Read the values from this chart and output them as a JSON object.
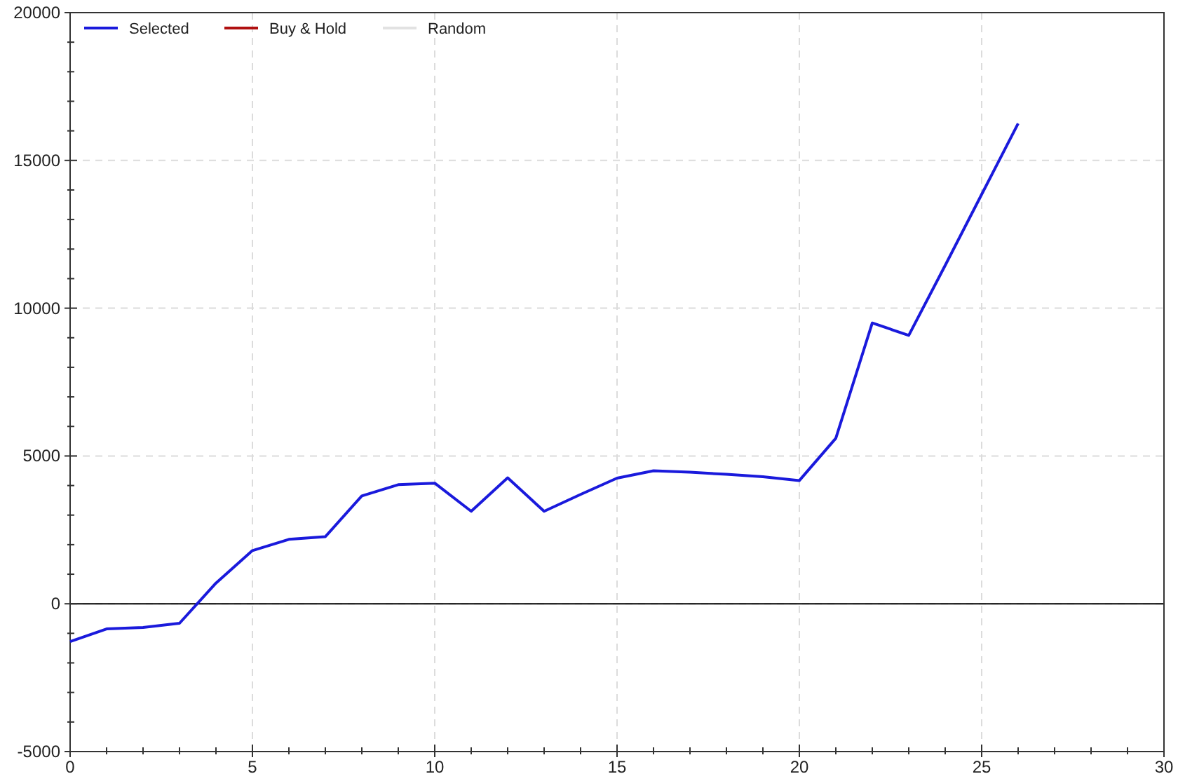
{
  "chart_data": {
    "type": "line",
    "x": [
      0,
      1,
      2,
      3,
      4,
      5,
      6,
      7,
      8,
      9,
      10,
      11,
      12,
      13,
      14,
      15,
      16,
      17,
      18,
      19,
      20,
      21,
      22,
      23,
      24,
      25,
      26
    ],
    "series": [
      {
        "name": "Selected",
        "color": "#1a1adc",
        "values": [
          -1280,
          -850,
          -800,
          -660,
          700,
          1800,
          2180,
          2270,
          3650,
          4030,
          4080,
          3130,
          4260,
          3130,
          3700,
          4250,
          4500,
          4450,
          4380,
          4300,
          4170,
          5600,
          9500,
          9080,
          11450,
          13850,
          16250
        ]
      },
      {
        "name": "Buy & Hold",
        "color": "#b01010",
        "values": [
          null,
          null,
          null,
          null,
          null,
          null,
          null,
          null,
          null,
          null,
          null,
          null,
          null,
          null,
          null,
          null,
          null,
          null,
          null,
          null,
          null,
          null,
          null,
          null,
          null,
          null,
          null
        ]
      },
      {
        "name": "Random",
        "color": "#e2e2e2",
        "values": [
          null,
          null,
          null,
          null,
          null,
          null,
          null,
          null,
          null,
          null,
          null,
          null,
          null,
          null,
          null,
          null,
          null,
          null,
          null,
          null,
          null,
          null,
          null,
          null,
          null,
          null,
          null
        ]
      }
    ],
    "xlim": [
      0,
      30
    ],
    "xticks": [
      0,
      {
        "value": 1,
        "label": null
      },
      {
        "value": 2,
        "label": null
      },
      {
        "value": 3,
        "label": null
      },
      {
        "value": 4,
        "label": null
      },
      5,
      {
        "value": 6,
        "label": null
      },
      {
        "value": 7,
        "label": null
      },
      {
        "value": 8,
        "label": null
      },
      {
        "value": 9,
        "label": null
      },
      10,
      {
        "value": 11,
        "label": null
      },
      {
        "value": 12,
        "label": null
      },
      {
        "value": 13,
        "label": null
      },
      {
        "value": 14,
        "label": null
      },
      15,
      {
        "value": 16,
        "label": null
      },
      {
        "value": 17,
        "label": null
      },
      {
        "value": 18,
        "label": null
      },
      {
        "value": 19,
        "label": null
      },
      20,
      {
        "value": 21,
        "label": null
      },
      {
        "value": 22,
        "label": null
      },
      {
        "value": 23,
        "label": null
      },
      {
        "value": 24,
        "label": null
      },
      25,
      {
        "value": 26,
        "label": null
      },
      {
        "value": 27,
        "label": null
      },
      {
        "value": 28,
        "label": null
      },
      {
        "value": 29,
        "label": null
      },
      30
    ],
    "ylim": [
      -5000,
      20000
    ],
    "yticks": [
      -5000,
      {
        "value": -4000,
        "label": null
      },
      {
        "value": -3000,
        "label": null
      },
      {
        "value": -2000,
        "label": null
      },
      {
        "value": -1000,
        "label": null
      },
      0,
      {
        "value": 1000,
        "label": null
      },
      {
        "value": 2000,
        "label": null
      },
      {
        "value": 3000,
        "label": null
      },
      {
        "value": 4000,
        "label": null
      },
      5000,
      {
        "value": 6000,
        "label": null
      },
      {
        "value": 7000,
        "label": null
      },
      {
        "value": 8000,
        "label": null
      },
      {
        "value": 9000,
        "label": null
      },
      10000,
      {
        "value": 11000,
        "label": null
      },
      {
        "value": 12000,
        "label": null
      },
      {
        "value": 13000,
        "label": null
      },
      {
        "value": 14000,
        "label": null
      },
      15000,
      {
        "value": 16000,
        "label": null
      },
      {
        "value": 17000,
        "label": null
      },
      {
        "value": 18000,
        "label": null
      },
      {
        "value": 19000,
        "label": null
      },
      20000
    ],
    "ref_lines": [
      {
        "axis": "y",
        "value": 0,
        "color": "#000000",
        "line_style": "solid"
      }
    ],
    "grid": true,
    "legend": "top left",
    "marker": "none",
    "line_style": "solid"
  }
}
